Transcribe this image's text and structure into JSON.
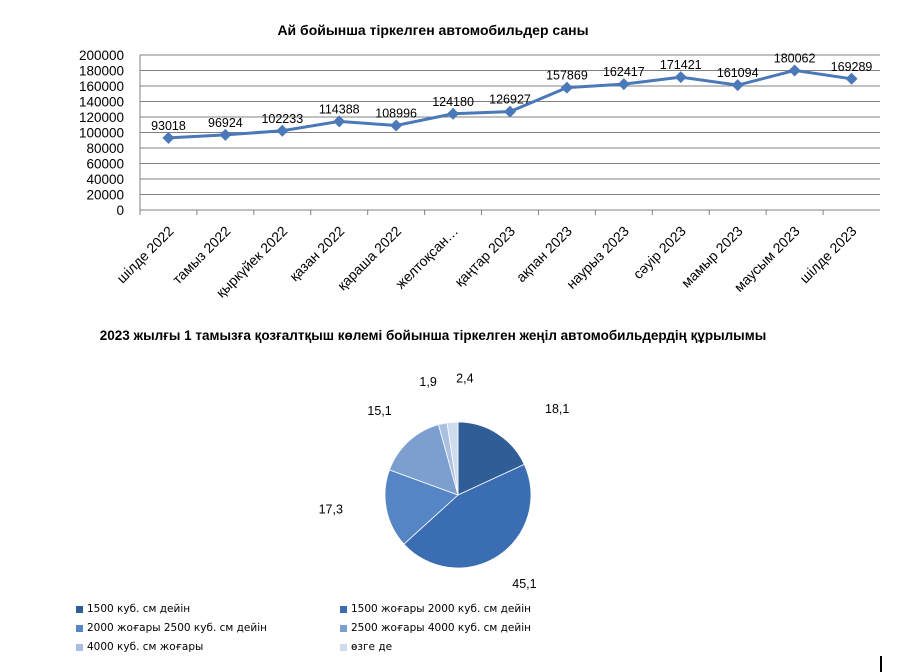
{
  "chart_data": [
    {
      "type": "line",
      "title": "Ай бойынша тіркелген автомобильдер саны",
      "categories": [
        "шілде 2022",
        "тамыз 2022",
        "қыркүйек 2022",
        "қазан 2022",
        "қараша 2022",
        "желтоқсан…",
        "қаңтар 2023",
        "ақпан 2023",
        "наурыз 2023",
        "сәуір 2023",
        "мамыр 2023",
        "маусым 2023",
        "шілде 2023"
      ],
      "series": [
        {
          "values": [
            93018,
            96924,
            102233,
            114388,
            108996,
            124180,
            126927,
            157869,
            162417,
            171421,
            161094,
            180062,
            169289
          ]
        }
      ],
      "data_labels": [
        "93018",
        "96924",
        "102233",
        "114388",
        "108996",
        "124180",
        "126927",
        "157869",
        "162417",
        "171421",
        "161094",
        "180062",
        "169289"
      ],
      "yticks": [
        "0",
        "20000",
        "40000",
        "60000",
        "80000",
        "100000",
        "120000",
        "140000",
        "160000",
        "180000",
        "200000"
      ],
      "ylim": [
        0,
        200000
      ],
      "grid": true,
      "color": "#4a78b8"
    },
    {
      "type": "pie",
      "title": "2023 жылғы 1 тамызға қозғалтқыш көлемі бойынша тіркелген жеңіл автомобильдердің  құрылымы",
      "slices": [
        {
          "label": "1500 куб. см дейін",
          "value": 18.1,
          "value_label": "18,1",
          "color": "#2f5d96"
        },
        {
          "label": "1500 жоғары 2000 куб. см дейін",
          "value": 45.1,
          "value_label": "45,1",
          "color": "#3b6db2"
        },
        {
          "label": "2000 жоғары 2500 куб. см дейін",
          "value": 17.3,
          "value_label": "17,3",
          "color": "#5585c4"
        },
        {
          "label": "2500 жоғары 4000 куб. см дейін",
          "value": 15.1,
          "value_label": "15,1",
          "color": "#7c9fd0"
        },
        {
          "label": "4000 куб. см жоғары",
          "value": 1.9,
          "value_label": "1,9",
          "color": "#a9c0e0"
        },
        {
          "label": "өзге де",
          "value": 2.4,
          "value_label": "2,4",
          "color": "#cfdcee"
        }
      ],
      "legend_position": "bottom"
    }
  ]
}
